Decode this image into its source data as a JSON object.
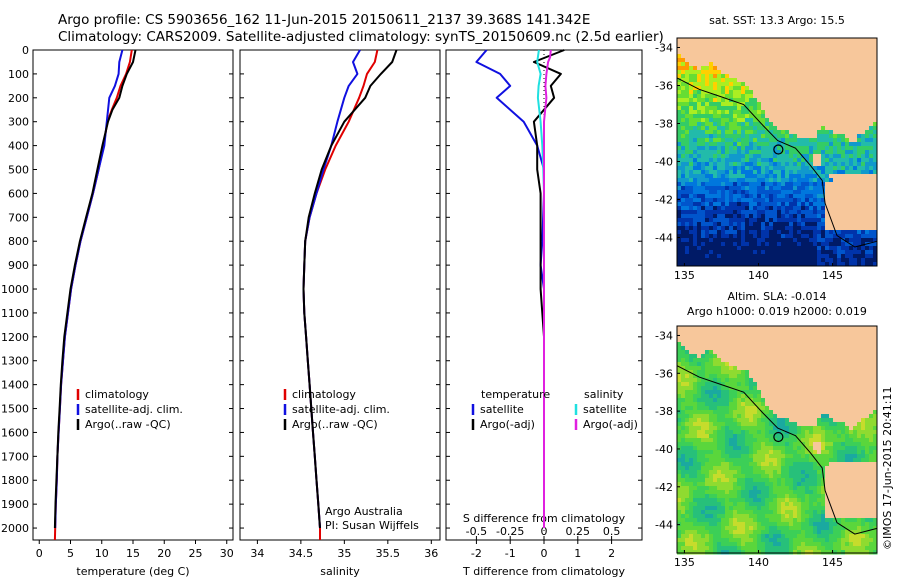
{
  "header": {
    "line1": "Argo profile: CS 5903656_162 11-Jun-2015 20150611_2137 39.368S 141.342E",
    "line2": "Climatology: CARS2009. Satellite-adjusted climatology: synTS_20150609.nc (2.5d earlier)"
  },
  "colors": {
    "climatology": "#e00000",
    "satellite": "#1010e0",
    "argo": "#000000",
    "salinity_sat": "#20e0e0",
    "salinity_argo": "#e020e0"
  },
  "depth_ticks": [
    "0",
    "100",
    "200",
    "300",
    "400",
    "500",
    "600",
    "700",
    "800",
    "900",
    "1000",
    "1100",
    "1200",
    "1300",
    "1400",
    "1500",
    "1600",
    "1700",
    "1800",
    "1900",
    "2000"
  ],
  "chart_data": [
    {
      "type": "line",
      "id": "temperature",
      "xlabel": "temperature (deg C)",
      "xlim": [
        -1,
        31
      ],
      "ylim": [
        2050,
        0
      ],
      "xticks": [
        0,
        5,
        10,
        15,
        20,
        25,
        30
      ],
      "xtick_labels": [
        "0",
        "5",
        "10",
        "15",
        "20",
        "25",
        "30"
      ],
      "legend": [
        "climatology",
        "satellite-adj. clim.",
        "Argo(..raw -QC)"
      ],
      "series": [
        {
          "name": "climatology",
          "color": "#e00000",
          "points": [
            [
              14.8,
              0
            ],
            [
              14.5,
              50
            ],
            [
              13.9,
              100
            ],
            [
              13.0,
              150
            ],
            [
              12.4,
              200
            ],
            [
              11.6,
              250
            ],
            [
              10.9,
              300
            ],
            [
              10.3,
              400
            ],
            [
              9.5,
              500
            ],
            [
              8.6,
              600
            ],
            [
              7.6,
              700
            ],
            [
              6.6,
              800
            ],
            [
              5.8,
              900
            ],
            [
              5.1,
              1000
            ],
            [
              4.6,
              1100
            ],
            [
              4.1,
              1200
            ],
            [
              3.8,
              1300
            ],
            [
              3.5,
              1400
            ],
            [
              3.3,
              1500
            ],
            [
              3.1,
              1600
            ],
            [
              2.9,
              1700
            ],
            [
              2.8,
              1800
            ],
            [
              2.65,
              1900
            ],
            [
              2.55,
              2000
            ],
            [
              2.5,
              2050
            ]
          ]
        },
        {
          "name": "satellite-adj. clim.",
          "color": "#1010e0",
          "points": [
            [
              13.3,
              0
            ],
            [
              12.8,
              50
            ],
            [
              12.7,
              100
            ],
            [
              12.1,
              150
            ],
            [
              11.2,
              200
            ],
            [
              10.8,
              300
            ],
            [
              10.4,
              400
            ],
            [
              9.5,
              500
            ],
            [
              8.6,
              600
            ],
            [
              7.6,
              700
            ],
            [
              6.6,
              800
            ],
            [
              5.8,
              900
            ],
            [
              5.1,
              1000
            ],
            [
              4.6,
              1100
            ],
            [
              4.1,
              1200
            ],
            [
              3.8,
              1300
            ],
            [
              3.5,
              1400
            ],
            [
              3.3,
              1500
            ],
            [
              3.1,
              1600
            ],
            [
              2.9,
              1700
            ],
            [
              2.8,
              1800
            ],
            [
              2.65,
              1900
            ],
            [
              2.55,
              2000
            ]
          ]
        },
        {
          "name": "Argo(..raw -QC)",
          "color": "#000000",
          "points": [
            [
              15.4,
              0
            ],
            [
              15.0,
              50
            ],
            [
              14.0,
              100
            ],
            [
              13.3,
              150
            ],
            [
              12.8,
              200
            ],
            [
              11.7,
              250
            ],
            [
              11.0,
              300
            ],
            [
              10.1,
              400
            ],
            [
              9.3,
              500
            ],
            [
              8.5,
              600
            ],
            [
              7.5,
              700
            ],
            [
              6.5,
              800
            ],
            [
              5.7,
              900
            ],
            [
              5.0,
              1000
            ],
            [
              4.5,
              1100
            ],
            [
              4.0,
              1200
            ],
            [
              3.7,
              1300
            ],
            [
              3.45,
              1400
            ],
            [
              3.25,
              1500
            ],
            [
              3.05,
              1600
            ],
            [
              2.9,
              1700
            ],
            [
              2.75,
              1800
            ],
            [
              2.6,
              1900
            ],
            [
              2.5,
              2000
            ]
          ]
        }
      ]
    },
    {
      "type": "line",
      "id": "salinity",
      "xlabel": "salinity",
      "xlim": [
        33.8,
        36.1
      ],
      "ylim": [
        2050,
        0
      ],
      "xticks": [
        34,
        34.5,
        35,
        35.5,
        36
      ],
      "xtick_labels": [
        "34",
        "34.5",
        "35",
        "35.5",
        "36"
      ],
      "legend": [
        "climatology",
        "satellite-adj. clim.",
        "Argo(..raw -QC)"
      ],
      "annotation": [
        "Argo Australia",
        "PI: Susan Wijffels"
      ],
      "series": [
        {
          "name": "climatology",
          "color": "#e00000",
          "points": [
            [
              35.38,
              0
            ],
            [
              35.35,
              50
            ],
            [
              35.26,
              100
            ],
            [
              35.22,
              150
            ],
            [
              35.17,
              200
            ],
            [
              35.05,
              300
            ],
            [
              34.9,
              400
            ],
            [
              34.78,
              500
            ],
            [
              34.68,
              600
            ],
            [
              34.6,
              700
            ],
            [
              34.55,
              800
            ],
            [
              34.54,
              900
            ],
            [
              34.53,
              1000
            ],
            [
              34.54,
              1100
            ],
            [
              34.56,
              1200
            ],
            [
              34.58,
              1300
            ],
            [
              34.6,
              1400
            ],
            [
              34.62,
              1500
            ],
            [
              34.64,
              1600
            ],
            [
              34.66,
              1700
            ],
            [
              34.68,
              1800
            ],
            [
              34.7,
              1900
            ],
            [
              34.72,
              2000
            ],
            [
              34.72,
              2050
            ]
          ]
        },
        {
          "name": "satellite-adj. clim.",
          "color": "#1010e0",
          "points": [
            [
              35.18,
              0
            ],
            [
              35.1,
              50
            ],
            [
              35.15,
              100
            ],
            [
              35.05,
              150
            ],
            [
              35.0,
              200
            ],
            [
              34.92,
              300
            ],
            [
              34.85,
              400
            ],
            [
              34.76,
              500
            ],
            [
              34.68,
              600
            ],
            [
              34.6,
              700
            ],
            [
              34.55,
              800
            ],
            [
              34.54,
              900
            ],
            [
              34.53,
              1000
            ],
            [
              34.54,
              1100
            ],
            [
              34.56,
              1200
            ],
            [
              34.58,
              1300
            ],
            [
              34.6,
              1400
            ],
            [
              34.62,
              1500
            ],
            [
              34.64,
              1600
            ],
            [
              34.66,
              1700
            ],
            [
              34.68,
              1800
            ],
            [
              34.7,
              1900
            ],
            [
              34.72,
              2000
            ]
          ]
        },
        {
          "name": "Argo(..raw -QC)",
          "color": "#000000",
          "points": [
            [
              35.6,
              0
            ],
            [
              35.55,
              50
            ],
            [
              35.42,
              100
            ],
            [
              35.3,
              150
            ],
            [
              35.24,
              200
            ],
            [
              35.0,
              300
            ],
            [
              34.85,
              400
            ],
            [
              34.74,
              500
            ],
            [
              34.66,
              600
            ],
            [
              34.59,
              700
            ],
            [
              34.55,
              800
            ],
            [
              34.54,
              900
            ],
            [
              34.53,
              1000
            ],
            [
              34.54,
              1100
            ],
            [
              34.56,
              1200
            ],
            [
              34.58,
              1300
            ],
            [
              34.6,
              1400
            ],
            [
              34.62,
              1500
            ],
            [
              34.64,
              1600
            ],
            [
              34.66,
              1700
            ],
            [
              34.68,
              1800
            ],
            [
              34.7,
              1900
            ],
            [
              34.72,
              2000
            ]
          ]
        }
      ]
    },
    {
      "type": "line",
      "id": "difference",
      "title": "S difference from climatology",
      "xlabel": "T difference from climatology",
      "xlim": [
        -2.9,
        2.9
      ],
      "ylim": [
        2050,
        0
      ],
      "xticks": [
        -2,
        -1,
        0,
        1,
        2
      ],
      "xtick_labels": [
        "-2",
        "-1",
        "0",
        "1",
        "2"
      ],
      "top_ticks": [
        -0.5,
        -0.25,
        0,
        0.25,
        0.5
      ],
      "top_tick_labels": [
        "-0.5",
        "-0.25",
        "0",
        "0.25",
        "0.5"
      ],
      "legend_groups": [
        {
          "heading": "temperature",
          "entries": [
            "satellite",
            "Argo(-adj)"
          ]
        },
        {
          "heading": "salinity",
          "entries": [
            "satellite",
            "Argo(-adj)"
          ]
        }
      ],
      "series": [
        {
          "name": "temperature satellite",
          "color": "#1010e0",
          "points": [
            [
              -1.7,
              0
            ],
            [
              -2.0,
              50
            ],
            [
              -1.3,
              100
            ],
            [
              -1.0,
              150
            ],
            [
              -1.4,
              200
            ],
            [
              -0.6,
              300
            ],
            [
              -0.2,
              400
            ],
            [
              0,
              500
            ],
            [
              0,
              600
            ],
            [
              -0.05,
              800
            ],
            [
              -0.1,
              900
            ],
            [
              0,
              1000
            ],
            [
              0,
              1200
            ],
            [
              0,
              2000
            ]
          ]
        },
        {
          "name": "temperature Argo(-adj)",
          "color": "#000000",
          "points": [
            [
              0.6,
              0
            ],
            [
              -0.3,
              50
            ],
            [
              0.5,
              100
            ],
            [
              0.2,
              150
            ],
            [
              0.3,
              200
            ],
            [
              -0.3,
              300
            ],
            [
              -0.2,
              400
            ],
            [
              -0.2,
              500
            ],
            [
              -0.1,
              600
            ],
            [
              -0.1,
              800
            ],
            [
              -0.1,
              900
            ],
            [
              -0.1,
              1000
            ],
            [
              0,
              1200
            ],
            [
              0,
              2000
            ]
          ]
        },
        {
          "name": "salinity satellite",
          "color": "#20e0e0",
          "points": [
            [
              -0.15,
              0
            ],
            [
              -0.2,
              50
            ],
            [
              -0.1,
              100
            ],
            [
              -0.16,
              150
            ],
            [
              -0.18,
              200
            ],
            [
              -0.1,
              300
            ],
            [
              -0.05,
              400
            ],
            [
              -0.02,
              500
            ],
            [
              0,
              600
            ],
            [
              0,
              1000
            ],
            [
              0,
              2000
            ]
          ]
        },
        {
          "name": "salinity Argo(-adj)",
          "color": "#e020e0",
          "points": [
            [
              0.2,
              0
            ],
            [
              0.18,
              30
            ],
            [
              0.12,
              50
            ],
            [
              0.07,
              100
            ],
            [
              0.04,
              150
            ],
            [
              0.07,
              200
            ],
            [
              0.0,
              300
            ],
            [
              0,
              400
            ],
            [
              0,
              2000
            ]
          ]
        }
      ]
    },
    {
      "type": "heatmap",
      "id": "sst-map",
      "title": "sat. SST: 13.3 Argo: 15.5",
      "xlim": [
        134.5,
        148
      ],
      "ylim": [
        -45.5,
        -33.5
      ],
      "xticks": [
        135,
        140,
        145
      ],
      "xtick_labels": [
        "135",
        "140",
        "145"
      ],
      "yticks": [
        -34,
        -36,
        -38,
        -40,
        -42,
        -44
      ],
      "ytick_labels": [
        "-34",
        "-36",
        "-38",
        "-40",
        "-42",
        "-44"
      ],
      "float_position": [
        141.342,
        -39.368
      ]
    },
    {
      "type": "heatmap",
      "id": "sla-map",
      "title": "Altim. SLA: -0.014",
      "subtitle": "Argo h1000: 0.019 h2000: 0.019",
      "xlim": [
        134.5,
        148
      ],
      "ylim": [
        -45.5,
        -33.5
      ],
      "xticks": [
        135,
        140,
        145
      ],
      "xtick_labels": [
        "135",
        "140",
        "145"
      ],
      "yticks": [
        -34,
        -36,
        -38,
        -40,
        -42,
        -44
      ],
      "ytick_labels": [
        "-34",
        "-36",
        "-38",
        "-40",
        "-42",
        "-44"
      ],
      "float_position": [
        141.342,
        -39.368
      ]
    }
  ],
  "footer": {
    "side_label": "©IMOS 17-Jun-2015 20:41:11"
  }
}
